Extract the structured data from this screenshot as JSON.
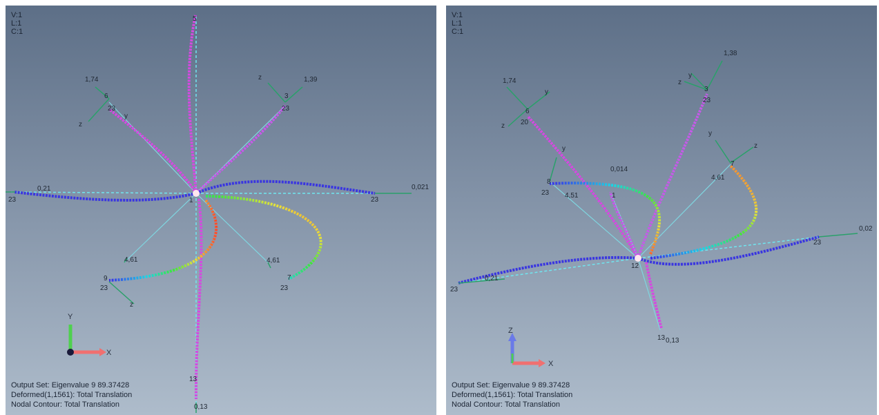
{
  "viewports": [
    {
      "header": [
        "V:1",
        "L:1",
        "C:1"
      ],
      "footer": [
        "Output Set: Eigenvalue 9 89.37428",
        "Deformed(1,1561): Total Translation",
        "Nodal Contour: Total Translation"
      ],
      "labels": {
        "t_top": "5",
        "t_ul_val": "1,74",
        "t_ul_node": "6",
        "t_ul_end": "23",
        "t_ul_z": "z",
        "t_ul_y": "y",
        "t_ur_z": "z",
        "t_ur_val": "1,39",
        "t_ur_node": "3",
        "t_ur_end": "23",
        "t_left_val": "0,21",
        "t_left_end": "23",
        "t_right_end": "23",
        "t_right_val": "0,021",
        "t_center": "1",
        "t_ll_val": "4,61",
        "t_ll_node": "9",
        "t_ll_end": "23",
        "t_ll_z": "z",
        "t_lr_val": "4,61",
        "t_lr_node": "7",
        "t_lr_end": "23",
        "t_bottom_node": "13",
        "t_bottom_val": "0,13"
      },
      "triad": {
        "y": "Y",
        "x": "X"
      }
    },
    {
      "header": [
        "V:1",
        "L:1",
        "C:1"
      ],
      "footer": [
        "Output Set: Eigenvalue 9 89.37428",
        "Deformed(1,1561): Total Translation",
        "Nodal Contour: Total Translation"
      ],
      "labels": {
        "t_ul_val": "1,74",
        "t_ul_y": "y",
        "t_ul_node": "6",
        "t_ul_z": "z",
        "t_ul_end": "20",
        "t_ur_val": "1,38",
        "t_ur_y": "y",
        "t_ur_z": "z",
        "t_ur_node": "3",
        "t_ur_end": "23",
        "t_mid_y": "y",
        "t_mid_val": "0,014",
        "t_mid_node": "8",
        "t_mid_end": "23",
        "t_mid_val2": "4,51",
        "t_mid_node2": "1",
        "t_r_y": "y",
        "t_r_z": "z",
        "t_r_val": "4,61",
        "t_r_node": "7",
        "t_right_val": "0,02",
        "t_right_end": "23",
        "t_left_val": "0,21",
        "t_left_end": "23",
        "t_center": "12",
        "t_bottom_node": "13",
        "t_bottom_val": "0,13"
      },
      "triad": {
        "z": "Z",
        "x": "X"
      }
    }
  ]
}
